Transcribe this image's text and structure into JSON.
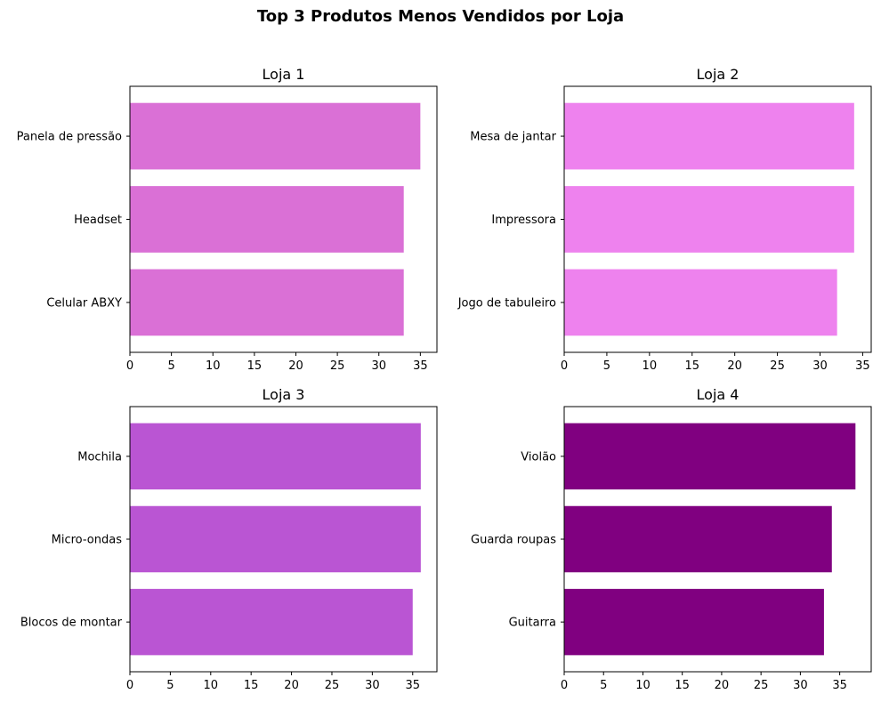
{
  "figure": {
    "title": "Top 3 Produtos Menos Vendidos por Loja"
  },
  "chart_data": [
    {
      "type": "bar",
      "orientation": "horizontal",
      "title": "Loja 1",
      "categories": [
        "Panela de pressão",
        "Headset",
        "Celular ABXY"
      ],
      "values": [
        35,
        33,
        33
      ],
      "xlim": [
        0,
        37
      ],
      "xticks": [
        0,
        5,
        10,
        15,
        20,
        25,
        30,
        35
      ],
      "color": "#da70d6",
      "grid": false
    },
    {
      "type": "bar",
      "orientation": "horizontal",
      "title": "Loja 2",
      "categories": [
        "Mesa de jantar",
        "Impressora",
        "Jogo de tabuleiro"
      ],
      "values": [
        34,
        34,
        32
      ],
      "xlim": [
        0,
        36
      ],
      "xticks": [
        0,
        5,
        10,
        15,
        20,
        25,
        30,
        35
      ],
      "color": "#ee82ee",
      "grid": false
    },
    {
      "type": "bar",
      "orientation": "horizontal",
      "title": "Loja 3",
      "categories": [
        "Mochila",
        "Micro-ondas",
        "Blocos de montar"
      ],
      "values": [
        36,
        36,
        35
      ],
      "xlim": [
        0,
        38
      ],
      "xticks": [
        0,
        5,
        10,
        15,
        20,
        25,
        30,
        35
      ],
      "color": "#ba55d3",
      "grid": false
    },
    {
      "type": "bar",
      "orientation": "horizontal",
      "title": "Loja 4",
      "categories": [
        "Violão",
        "Guarda roupas",
        "Guitarra"
      ],
      "values": [
        37,
        34,
        33
      ],
      "xlim": [
        0,
        39
      ],
      "xticks": [
        0,
        5,
        10,
        15,
        20,
        25,
        30,
        35
      ],
      "color": "#800080",
      "grid": false
    }
  ]
}
